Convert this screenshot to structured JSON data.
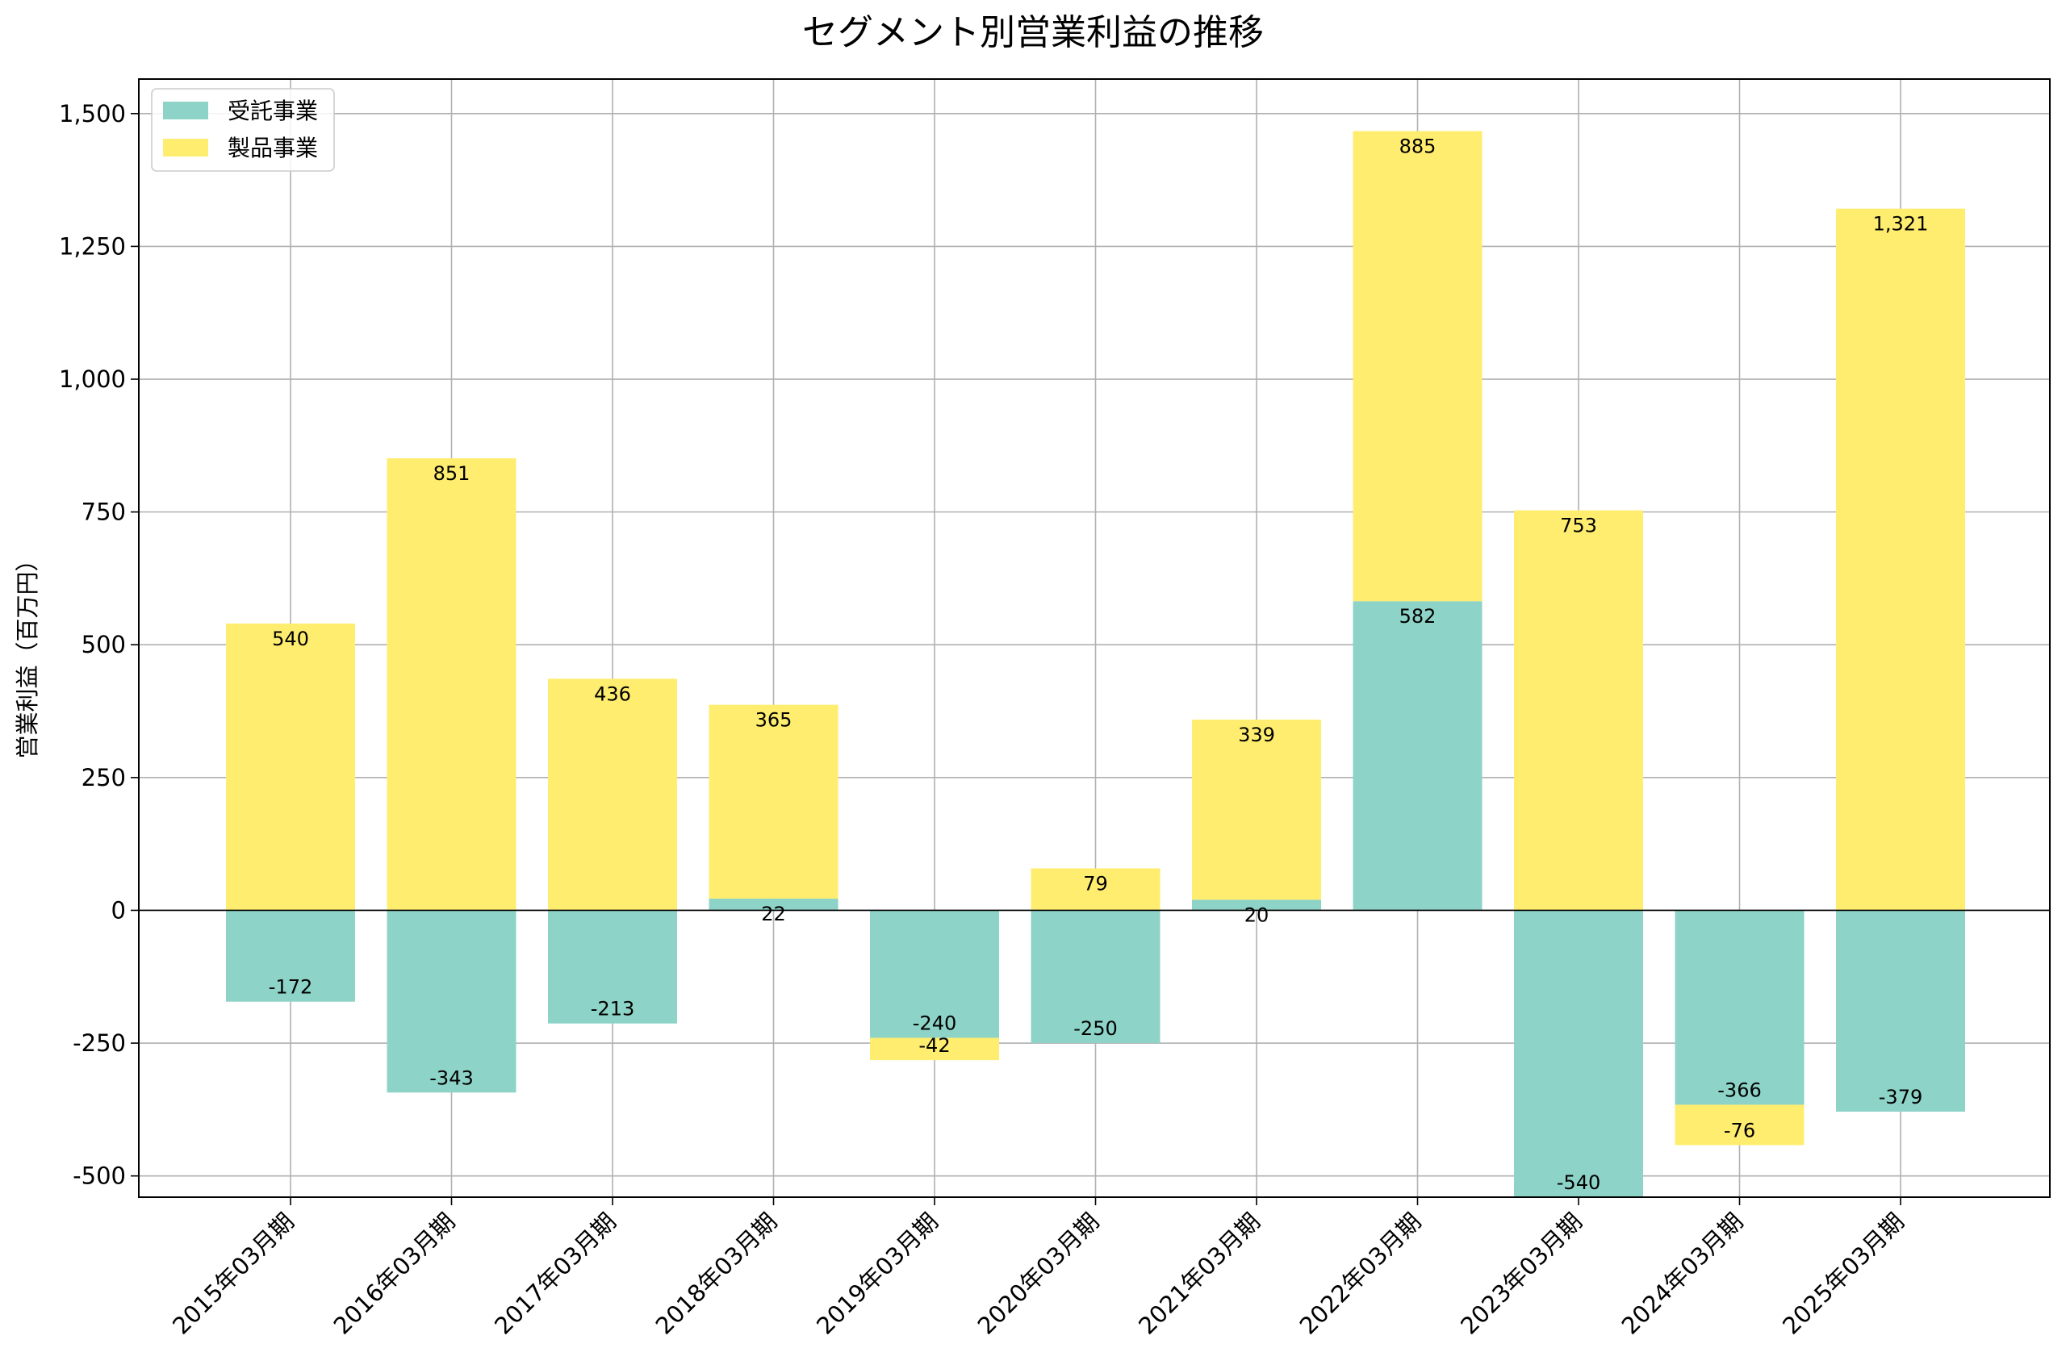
{
  "chart_data": {
    "type": "bar",
    "stacked": true,
    "title": "セグメント別営業利益の推移",
    "xlabel": "",
    "ylabel": "営業利益（百万円）",
    "ylim": [
      -540,
      1565
    ],
    "yticks": [
      -500,
      -250,
      0,
      250,
      500,
      750,
      1000,
      1250,
      1500
    ],
    "ytick_labels": [
      "-500",
      "-250",
      "0",
      "250",
      "500",
      "750",
      "1,000",
      "1,250",
      "1,500"
    ],
    "grid": true,
    "legend_position": "top-left",
    "categories": [
      "2015年03月期",
      "2016年03月期",
      "2017年03月期",
      "2018年03月期",
      "2019年03月期",
      "2020年03月期",
      "2021年03月期",
      "2022年03月期",
      "2023年03月期",
      "2024年03月期",
      "2025年03月期"
    ],
    "series": [
      {
        "name": "受託事業",
        "color": "#8dd3c7",
        "values": [
          -172,
          -343,
          -213,
          22,
          -240,
          -250,
          20,
          582,
          -540,
          -366,
          -379
        ],
        "labels": [
          "-172",
          "-343",
          "-213",
          "22",
          "-240",
          "-250",
          "20",
          "582",
          "-540",
          "-366",
          "-379"
        ]
      },
      {
        "name": "製品事業",
        "color": "#ffed6f",
        "values": [
          540,
          851,
          436,
          365,
          -42,
          79,
          339,
          885,
          753,
          -76,
          1321
        ],
        "labels": [
          "540",
          "851",
          "436",
          "365",
          "-42",
          "79",
          "339",
          "885",
          "753",
          "-76",
          "1,321"
        ]
      }
    ]
  }
}
